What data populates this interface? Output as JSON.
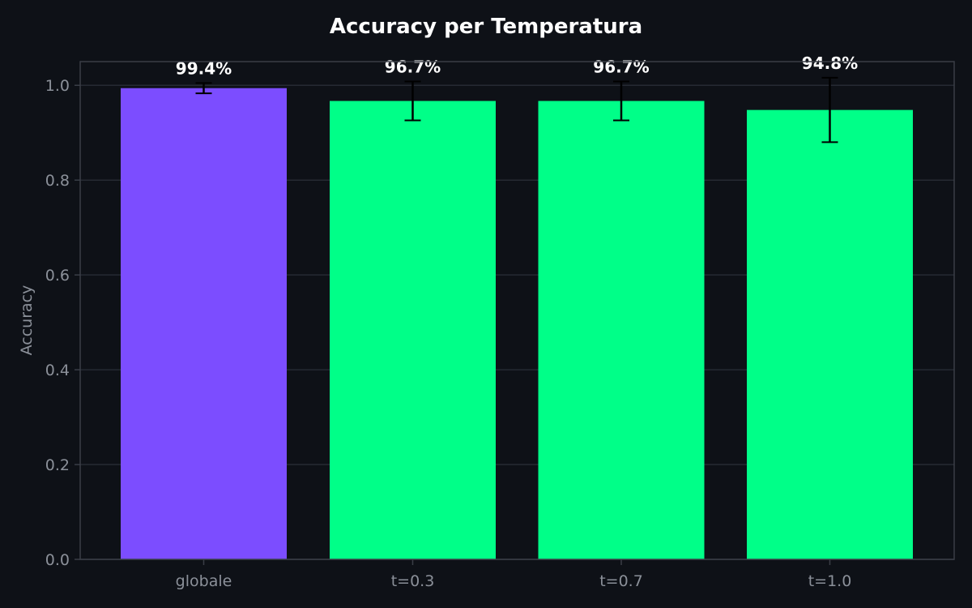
{
  "chart_data": {
    "type": "bar",
    "title": "Accuracy per Temperatura",
    "xlabel": "",
    "ylabel": "Accuracy",
    "categories": [
      "globale",
      "t=0.3",
      "t=0.7",
      "t=1.0"
    ],
    "values": [
      0.994,
      0.967,
      0.967,
      0.948
    ],
    "errors": [
      0.011,
      0.041,
      0.041,
      0.068
    ],
    "value_labels": [
      "99.4%",
      "96.7%",
      "96.7%",
      "94.8%"
    ],
    "colors": [
      "#7c4dff",
      "#00ff88",
      "#00ff88",
      "#00ff88"
    ],
    "ylim": [
      0,
      1.05
    ],
    "yticks": [
      0.0,
      0.2,
      0.4,
      0.6,
      0.8,
      1.0
    ],
    "ytick_labels": [
      "0.0",
      "0.2",
      "0.4",
      "0.6",
      "0.8",
      "1.0"
    ],
    "grid": true,
    "legend": null
  },
  "theme": {
    "background": "#0e1117",
    "grid_color": "#262a33",
    "spine_color": "#3a3e47",
    "text_color": "#8b9099",
    "errorbar_color": "#000000"
  }
}
